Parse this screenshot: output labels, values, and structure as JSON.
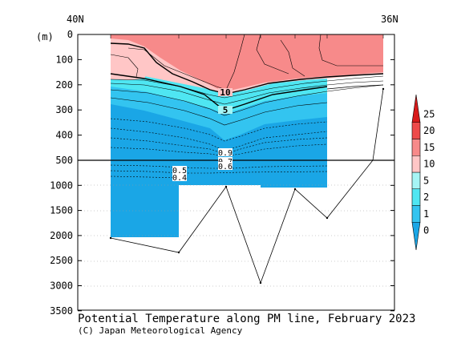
{
  "chart_data": {
    "type": "heatmap",
    "title": "Potential Temperature along PM line, February 2023",
    "credit": "(C) Japan Meteorological Agency",
    "ylabel": "(m)",
    "x_labels": [
      "40N",
      "36N"
    ],
    "y_ticks": [
      0,
      100,
      200,
      300,
      400,
      500,
      1000,
      1500,
      2000,
      2500,
      3000,
      3500
    ],
    "colorbar": {
      "levels": [
        0,
        1,
        2,
        5,
        10,
        15,
        20,
        25
      ],
      "colors": [
        "#1aa6e6",
        "#33c4f0",
        "#4fe6f2",
        "#a6f5f5",
        "#ffc6c6",
        "#f78a8a",
        "#ee4a4a",
        "#d81a1a"
      ]
    },
    "contour_labels": [
      "10",
      "5",
      "0.9",
      "0.7",
      "0.6",
      "0.5",
      "0.4"
    ]
  }
}
